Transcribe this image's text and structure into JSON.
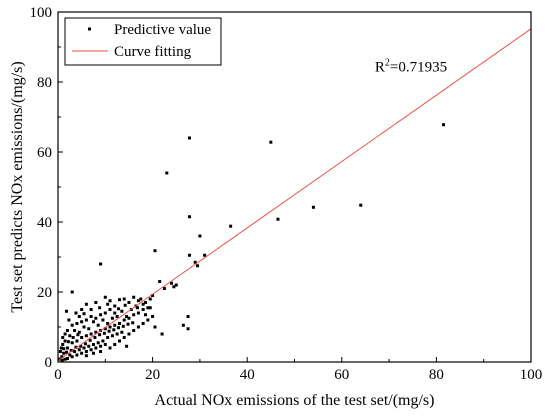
{
  "chart_data": {
    "type": "scatter",
    "title": "",
    "xlabel": "Actual NOx emissions of the test set/(mg/s)",
    "ylabel": "Test set predicts NOx emissions/(mg/s)",
    "xlim": [
      0,
      100
    ],
    "ylim": [
      0,
      100
    ],
    "x_ticks": [
      "0",
      "20",
      "40",
      "60",
      "80",
      "100"
    ],
    "y_ticks": [
      "0",
      "20",
      "40",
      "60",
      "80",
      "100"
    ],
    "grid": false,
    "legend_placement": "top-left",
    "annotation": {
      "r_symbol": "R",
      "r_superscript": "2",
      "r_value": "=0.71935",
      "x": 67,
      "y": 83
    },
    "series": [
      {
        "name": "Predictive value",
        "kind": "points",
        "color": "#000000",
        "points": [
          [
            81.5,
            67.8
          ],
          [
            45.0,
            62.8
          ],
          [
            27.8,
            64.0
          ],
          [
            23.0,
            54.0
          ],
          [
            46.5,
            40.8
          ],
          [
            54.0,
            44.2
          ],
          [
            64.0,
            44.8
          ],
          [
            36.5,
            38.8
          ],
          [
            27.8,
            41.5
          ],
          [
            30.0,
            36.0
          ],
          [
            31.0,
            30.5
          ],
          [
            27.8,
            30.5
          ],
          [
            29.0,
            28.5
          ],
          [
            29.5,
            27.5
          ],
          [
            20.5,
            31.8
          ],
          [
            9.0,
            28.0
          ],
          [
            25.0,
            22.0
          ],
          [
            24.0,
            22.5
          ],
          [
            22.5,
            21.0
          ],
          [
            24.5,
            21.5
          ],
          [
            21.5,
            23.0
          ],
          [
            20.0,
            19.0
          ],
          [
            19.5,
            15.5
          ],
          [
            18.5,
            13.5
          ],
          [
            20.5,
            10.0
          ],
          [
            26.5,
            10.5
          ],
          [
            27.5,
            13.0
          ],
          [
            27.5,
            9.5
          ],
          [
            22.0,
            8.0
          ],
          [
            14.5,
            4.5
          ],
          [
            3.0,
            20.0
          ],
          [
            1.8,
            14.5
          ],
          [
            2.3,
            12.0
          ],
          [
            5.0,
            15.0
          ],
          [
            6.0,
            16.5
          ],
          [
            8.0,
            17.0
          ],
          [
            10.0,
            18.5
          ],
          [
            11.0,
            17.5
          ],
          [
            12.0,
            16.0
          ],
          [
            13.0,
            17.8
          ],
          [
            14.0,
            18.0
          ],
          [
            15.0,
            17.0
          ],
          [
            16.0,
            18.5
          ],
          [
            17.0,
            17.5
          ],
          [
            18.0,
            16.5
          ],
          [
            15.5,
            15.0
          ],
          [
            14.5,
            13.0
          ],
          [
            13.5,
            14.5
          ],
          [
            12.5,
            13.0
          ],
          [
            11.5,
            12.5
          ],
          [
            10.5,
            11.0
          ],
          [
            9.5,
            12.0
          ],
          [
            8.5,
            10.5
          ],
          [
            7.5,
            11.5
          ],
          [
            6.5,
            9.5
          ],
          [
            5.5,
            10.0
          ],
          [
            4.5,
            8.5
          ],
          [
            3.5,
            9.0
          ],
          [
            2.5,
            7.5
          ],
          [
            1.5,
            6.0
          ],
          [
            1.0,
            5.0
          ],
          [
            0.5,
            3.0
          ],
          [
            0.8,
            1.5
          ],
          [
            1.2,
            2.5
          ],
          [
            2.0,
            4.0
          ],
          [
            3.0,
            5.5
          ],
          [
            4.0,
            6.0
          ],
          [
            5.0,
            7.0
          ],
          [
            6.0,
            7.5
          ],
          [
            7.0,
            8.0
          ],
          [
            8.0,
            8.5
          ],
          [
            9.0,
            9.0
          ],
          [
            10.0,
            9.5
          ],
          [
            11.0,
            10.0
          ],
          [
            12.0,
            10.5
          ],
          [
            13.0,
            11.0
          ],
          [
            14.0,
            12.0
          ],
          [
            15.0,
            12.5
          ],
          [
            16.0,
            13.5
          ],
          [
            17.0,
            14.0
          ],
          [
            18.0,
            15.0
          ],
          [
            19.0,
            15.5
          ],
          [
            16.5,
            16.0
          ],
          [
            17.5,
            18.0
          ],
          [
            18.5,
            17.0
          ],
          [
            19.5,
            18.0
          ],
          [
            12.0,
            14.0
          ],
          [
            11.0,
            15.0
          ],
          [
            10.0,
            14.0
          ],
          [
            9.0,
            13.5
          ],
          [
            8.0,
            12.5
          ],
          [
            7.0,
            13.0
          ],
          [
            6.0,
            12.0
          ],
          [
            5.0,
            11.5
          ],
          [
            4.0,
            11.0
          ],
          [
            3.0,
            10.5
          ],
          [
            2.0,
            9.0
          ],
          [
            1.5,
            8.0
          ],
          [
            1.0,
            7.0
          ],
          [
            0.7,
            4.0
          ],
          [
            2.5,
            2.0
          ],
          [
            3.5,
            3.0
          ],
          [
            4.5,
            3.5
          ],
          [
            5.5,
            4.0
          ],
          [
            6.5,
            4.5
          ],
          [
            7.5,
            5.0
          ],
          [
            8.5,
            5.5
          ],
          [
            9.5,
            6.0
          ],
          [
            10.5,
            7.0
          ],
          [
            11.5,
            7.5
          ],
          [
            12.5,
            8.0
          ],
          [
            13.5,
            8.5
          ],
          [
            10.0,
            5.0
          ],
          [
            9.0,
            4.5
          ],
          [
            8.0,
            4.0
          ],
          [
            7.0,
            3.5
          ],
          [
            6.0,
            3.0
          ],
          [
            5.0,
            2.5
          ],
          [
            4.0,
            2.0
          ],
          [
            3.0,
            1.5
          ],
          [
            2.0,
            1.0
          ],
          [
            1.5,
            0.8
          ],
          [
            6.0,
            1.8
          ],
          [
            7.5,
            2.5
          ],
          [
            9.0,
            3.0
          ],
          [
            11.0,
            4.0
          ],
          [
            12.0,
            5.0
          ],
          [
            13.0,
            6.0
          ],
          [
            14.0,
            7.0
          ],
          [
            15.0,
            8.0
          ],
          [
            16.0,
            9.0
          ],
          [
            17.0,
            10.0
          ],
          [
            18.0,
            11.0
          ],
          [
            19.0,
            12.0
          ],
          [
            20.0,
            13.0
          ],
          [
            4.5,
            13.0
          ],
          [
            3.8,
            14.0
          ],
          [
            5.5,
            13.8
          ],
          [
            7.0,
            15.0
          ],
          [
            8.8,
            15.5
          ],
          [
            10.5,
            16.5
          ],
          [
            12.8,
            15.2
          ],
          [
            14.2,
            16.2
          ],
          [
            6.8,
            6.2
          ],
          [
            5.8,
            5.2
          ],
          [
            4.8,
            4.5
          ],
          [
            3.8,
            4.2
          ],
          [
            2.8,
            3.3
          ],
          [
            1.8,
            2.8
          ],
          [
            7.8,
            7.0
          ],
          [
            8.8,
            7.8
          ],
          [
            9.8,
            8.2
          ],
          [
            10.8,
            8.8
          ],
          [
            11.8,
            9.2
          ],
          [
            12.8,
            9.8
          ],
          [
            13.8,
            10.2
          ],
          [
            14.8,
            10.8
          ],
          [
            15.8,
            11.2
          ],
          [
            3.2,
            7.0
          ],
          [
            4.2,
            7.8
          ],
          [
            2.2,
            5.8
          ],
          [
            1.2,
            3.8
          ],
          [
            0.4,
            0.8
          ],
          [
            0.9,
            0.5
          ],
          [
            16.8,
            15.5
          ]
        ]
      },
      {
        "name": "Curve fitting",
        "kind": "line",
        "color": "#e8524a",
        "x": [
          0,
          100
        ],
        "y": [
          0.4,
          95.2
        ]
      }
    ]
  }
}
